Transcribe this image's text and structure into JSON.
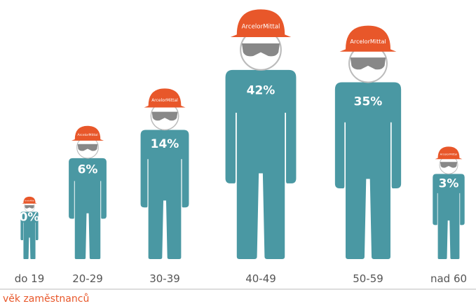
{
  "chart_data": {
    "type": "pictogram",
    "x_label": "věk zaměstnanců",
    "brand": "ArcelorMittal",
    "categories": [
      "do 19",
      "20-29",
      "30-39",
      "40-49",
      "50-59",
      "nad 60"
    ],
    "values": [
      0,
      6,
      14,
      42,
      35,
      3
    ],
    "value_labels": [
      "0%",
      "6%",
      "14%",
      "42%",
      "35%",
      "3%"
    ],
    "color": "#4a98a3",
    "helmet_color": "#e8572a"
  }
}
